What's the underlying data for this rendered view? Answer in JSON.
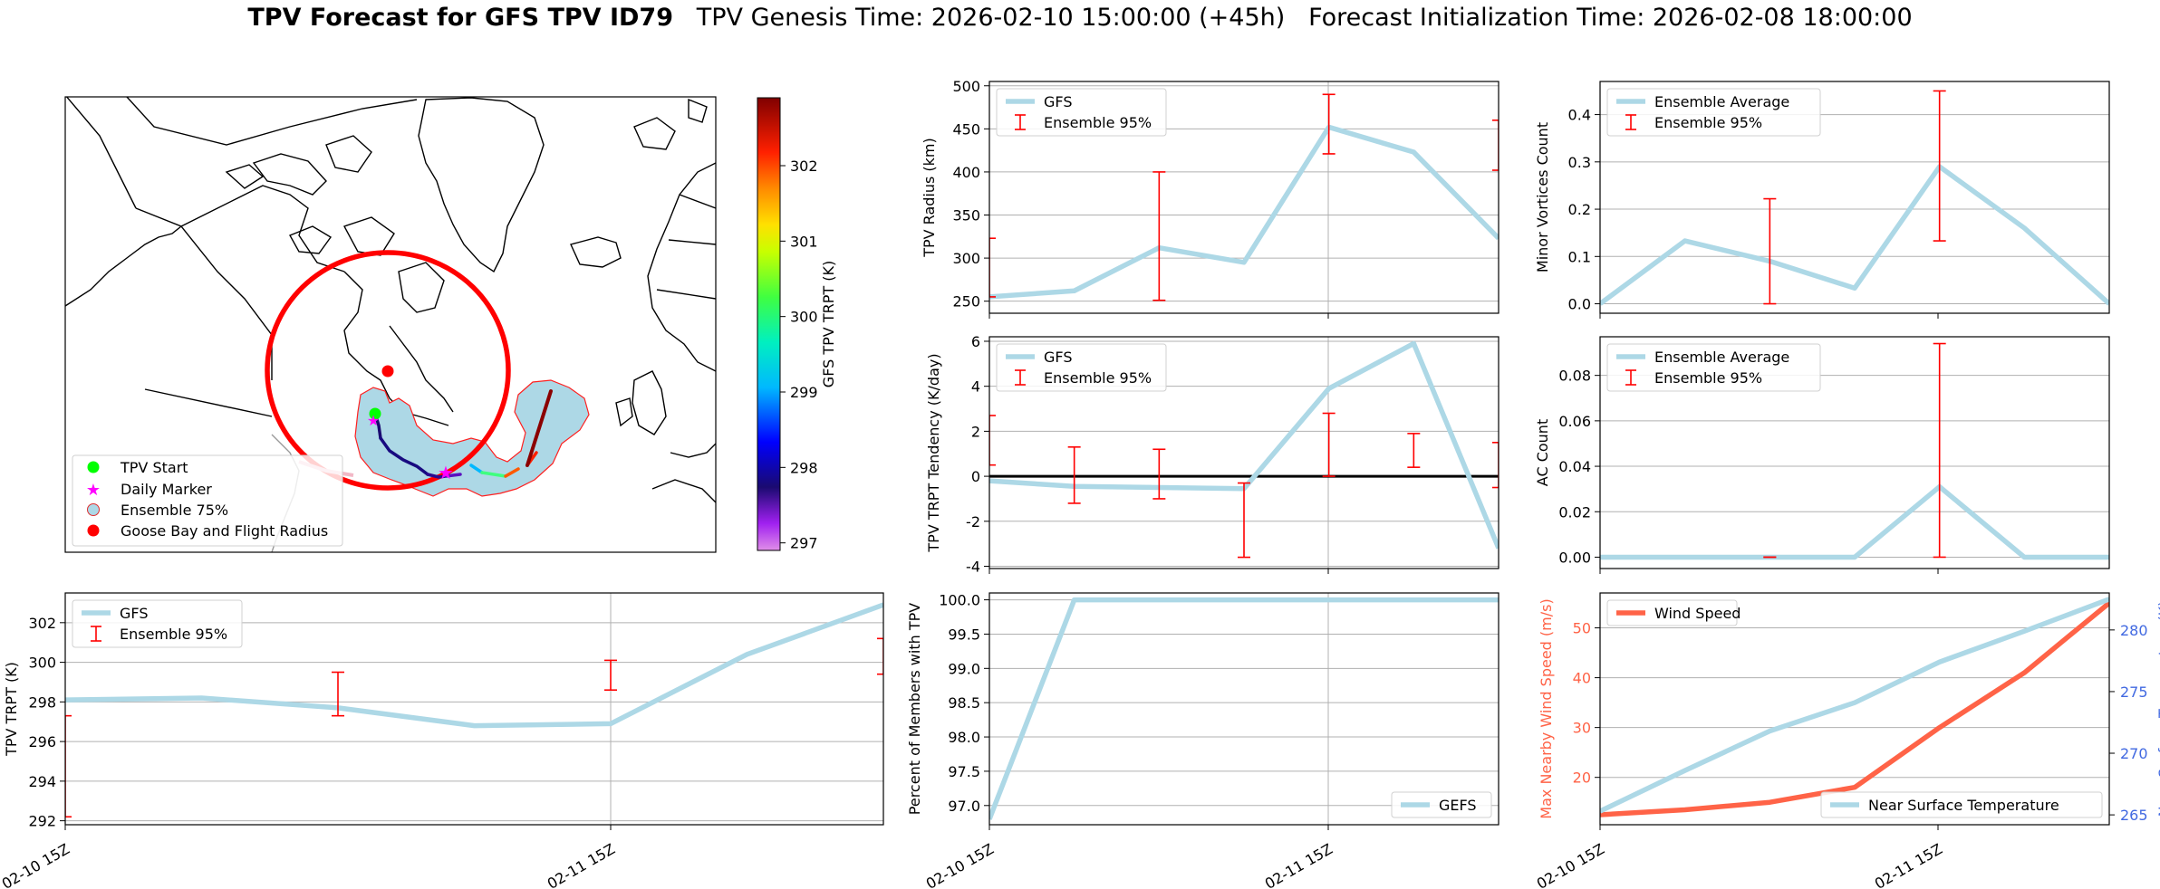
{
  "title": {
    "bold": "TPV Forecast for GFS TPV ID79",
    "genesis": "TPV Genesis Time: 2026-02-10 15:00:00 (+45h)",
    "init": "Forecast Initialization Time: 2026-02-08 18:00:00"
  },
  "colors": {
    "gfs_line": "#add8e6",
    "ensemble_err": "#ff0000",
    "wind": "#ff6347",
    "temp_axis": "#4169e1",
    "land_blob": "#add8e6",
    "radius_circle": "#ff0000"
  },
  "chart_data": [
    {
      "id": "map",
      "type": "map",
      "colorbar": {
        "label": "GFS TPV TRPT (K)",
        "ticks": [
          297,
          298,
          299,
          300,
          301,
          302
        ],
        "range": [
          296.9,
          302.9
        ],
        "colormap": "gist_ncar-like"
      },
      "legend": [
        "TPV Start",
        "Daily Marker",
        "Ensemble 75%",
        "Goose Bay and Flight Radius"
      ],
      "legend_placement": "lower-left"
    },
    {
      "id": "radius",
      "type": "line",
      "ylabel": "TPV Radius (km)",
      "ylim": [
        236,
        505
      ],
      "yticks": [
        250,
        300,
        350,
        400,
        450,
        500
      ],
      "series": [
        {
          "name": "GFS",
          "x": [
            0,
            1,
            2,
            3,
            4,
            5,
            6
          ],
          "y": [
            255,
            262,
            312,
            295,
            452,
            423,
            323
          ]
        }
      ],
      "ensemble": {
        "name": "Ensemble 95%",
        "x": [
          0,
          2,
          4,
          6
        ],
        "low": [
          255,
          251,
          421,
          402
        ],
        "high": [
          323,
          400,
          490,
          460
        ]
      },
      "legend_placement": "top-left"
    },
    {
      "id": "minor",
      "type": "line",
      "ylabel": "Minor Vortices Count",
      "ylim": [
        -0.02,
        0.47
      ],
      "yticks": [
        "0.0",
        "0.1",
        "0.2",
        "0.3",
        "0.4"
      ],
      "series": [
        {
          "name": "Ensemble Average",
          "x": [
            0,
            1,
            2,
            3,
            4,
            5,
            6
          ],
          "y": [
            0.0,
            0.133,
            0.09,
            0.033,
            0.29,
            0.16,
            0.0
          ]
        }
      ],
      "ensemble": {
        "name": "Ensemble 95%",
        "x": [
          2,
          4
        ],
        "low": [
          0.0,
          0.133
        ],
        "high": [
          0.222,
          0.45
        ]
      },
      "legend_placement": "top-left"
    },
    {
      "id": "tendency",
      "type": "line",
      "ylabel": "TPV TRPT Tendency (K/day)",
      "ylim": [
        -4.1,
        6.2
      ],
      "yticks": [
        -4,
        -2,
        0,
        2,
        4,
        6
      ],
      "series": [
        {
          "name": "GFS",
          "x": [
            0,
            1,
            2,
            3,
            4,
            5,
            6
          ],
          "y": [
            -0.2,
            -0.45,
            -0.5,
            -0.55,
            3.9,
            5.9,
            -3.2
          ]
        }
      ],
      "ensemble": {
        "name": "Ensemble 95%",
        "x": [
          0,
          1,
          2,
          3,
          4,
          5,
          6
        ],
        "low": [
          0.5,
          -1.2,
          -1.0,
          -3.6,
          0.0,
          0.4,
          -0.5
        ],
        "high": [
          2.7,
          1.3,
          1.2,
          -0.3,
          2.8,
          1.9,
          1.5
        ]
      },
      "legend_placement": "top-left"
    },
    {
      "id": "ac",
      "type": "line",
      "ylabel": "AC Count",
      "ylim": [
        -0.005,
        0.097
      ],
      "yticks": [
        "0.00",
        "0.02",
        "0.04",
        "0.06",
        "0.08"
      ],
      "series": [
        {
          "name": "Ensemble Average",
          "x": [
            0,
            1,
            2,
            3,
            4,
            5,
            6
          ],
          "y": [
            0,
            0,
            0,
            0,
            0.031,
            0,
            0
          ]
        }
      ],
      "ensemble": {
        "name": "Ensemble 95%",
        "x": [
          2,
          4
        ],
        "low": [
          0,
          0
        ],
        "high": [
          0,
          0.094
        ]
      },
      "legend_placement": "top-left"
    },
    {
      "id": "trpt",
      "type": "line",
      "ylabel": "TPV TRPT (K)",
      "ylim": [
        291.8,
        303.5
      ],
      "yticks": [
        292,
        294,
        296,
        298,
        300,
        302
      ],
      "xticks": [
        "02-10 15Z",
        "02-11 15Z"
      ],
      "series": [
        {
          "name": "GFS",
          "x": [
            0,
            1,
            2,
            3,
            4,
            5,
            6
          ],
          "y": [
            298.1,
            298.2,
            297.7,
            296.8,
            296.9,
            300.4,
            302.9
          ]
        }
      ],
      "ensemble": {
        "name": "Ensemble 95%",
        "x": [
          0,
          2,
          4,
          6
        ],
        "low": [
          292.2,
          297.3,
          298.6,
          299.4
        ],
        "high": [
          297.3,
          299.5,
          300.1,
          301.2
        ]
      },
      "legend_placement": "top-left"
    },
    {
      "id": "members",
      "type": "line",
      "ylabel": "Percent of Members with TPV",
      "ylim": [
        96.72,
        100.1
      ],
      "yticks": [
        "97.0",
        "97.5",
        "98.0",
        "98.5",
        "99.0",
        "99.5",
        "100.0"
      ],
      "xticks": [
        "02-10 15Z",
        "02-11 15Z"
      ],
      "series": [
        {
          "name": "GEFS",
          "x": [
            0,
            1,
            2,
            3,
            4,
            5,
            6
          ],
          "y": [
            96.8,
            100,
            100,
            100,
            100,
            100,
            100
          ]
        }
      ],
      "legend_placement": "lower-right"
    },
    {
      "id": "wind",
      "type": "line",
      "ylabel": "Max Nearby Wind Speed (m/s)",
      "ylabel2": "Near Surface Temperature (K)",
      "ylim": [
        10.5,
        57
      ],
      "yticks": [
        20,
        30,
        40,
        50
      ],
      "ylim2": [
        264.2,
        283
      ],
      "yticks2": [
        265,
        270,
        275,
        280
      ],
      "xticks": [
        "02-10 15Z",
        "02-11 15Z"
      ],
      "series": [
        {
          "name": "Wind Speed",
          "axis": "left",
          "x": [
            0,
            1,
            2,
            3,
            4,
            5,
            6
          ],
          "y": [
            12.5,
            13.5,
            15,
            18,
            30,
            41,
            55
          ]
        },
        {
          "name": "Near Surface Temperature",
          "axis": "right",
          "x": [
            0,
            1,
            2,
            3,
            4,
            5,
            6
          ],
          "y": [
            265.3,
            268.6,
            271.8,
            274.1,
            277.4,
            279.9,
            282.5
          ]
        }
      ],
      "legend_placement": "top-left / lower-right"
    }
  ]
}
